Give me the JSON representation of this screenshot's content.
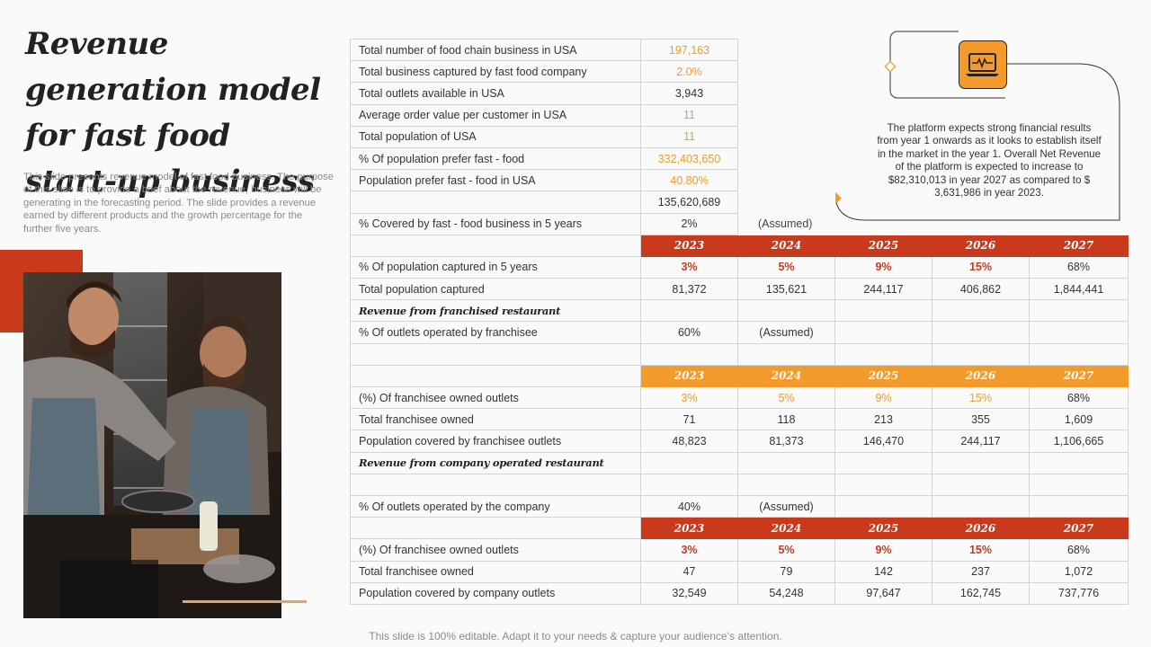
{
  "title": "Revenue generation model for fast food start-up business",
  "description": "This slide presents revenue model of fast food business. The purpose of this slide is to provide a brief about the revenue, business will be generating in the forecasting period. The slide provides a revenue earned by different products and the growth percentage for the further five years.",
  "callout": {
    "text": "The platform expects strong financial results from year 1 onwards as it looks to establish itself in the market in the year 1. Overall Net Revenue of the platform is expected to increase to $82,310,013 in year 2027 as compared to $ 3,631,986 in year 2023.",
    "icon": "laptop-heartbeat-icon"
  },
  "colors": {
    "accent_red": "#c9391c",
    "accent_orange": "#f29b2c"
  },
  "top_rows": [
    {
      "label": "Total number of food chain business in USA",
      "value": "197,163"
    },
    {
      "label": "Total business captured by fast food company",
      "value": "2.0%"
    },
    {
      "label": "Total outlets available in USA",
      "value": "3,943"
    },
    {
      "label": "Average order value per customer in USA",
      "value": "11"
    },
    {
      "label": "Total population of USA",
      "value": "11"
    },
    {
      "label": "% Of population prefer fast - food",
      "value": "332,403,650"
    },
    {
      "label": "Population prefer fast - food in USA",
      "value": "40.80%"
    },
    {
      "label": "",
      "value": "135,620,689"
    },
    {
      "label": "% Covered by fast - food business in 5 years",
      "value": "2%",
      "note": "(Assumed)"
    }
  ],
  "years": [
    "2023",
    "2024",
    "2025",
    "2026",
    "2027"
  ],
  "section1": {
    "rows": [
      {
        "label": "% Of population captured in 5 years",
        "values": [
          "3%",
          "5%",
          "9%",
          "15%",
          "68%"
        ]
      },
      {
        "label": "Total population captured",
        "values": [
          "81,372",
          "135,621",
          "244,117",
          "406,862",
          "1,844,441"
        ]
      }
    ]
  },
  "section2": {
    "heading": "Revenue from franchised restaurant",
    "assumption_label": "% Of outlets operated by franchisee",
    "assumption_value": "60%",
    "assumption_note": "(Assumed)",
    "rows": [
      {
        "label": "(%) Of franchisee owned outlets",
        "values": [
          "3%",
          "5%",
          "9%",
          "15%",
          "68%"
        ]
      },
      {
        "label": "Total franchisee owned",
        "values": [
          "71",
          "118",
          "213",
          "355",
          "1,609"
        ]
      },
      {
        "label": "Population covered by franchisee outlets",
        "values": [
          "48,823",
          "81,373",
          "146,470",
          "244,117",
          "1,106,665"
        ]
      }
    ]
  },
  "section3": {
    "heading": "Revenue from company operated restaurant",
    "assumption_label": "% Of outlets operated by the company",
    "assumption_value": "40%",
    "assumption_note": "(Assumed)",
    "rows": [
      {
        "label": "(%) Of franchisee owned outlets",
        "values": [
          "3%",
          "5%",
          "9%",
          "15%",
          "68%"
        ]
      },
      {
        "label": "Total franchisee owned",
        "values": [
          "47",
          "79",
          "142",
          "237",
          "1,072"
        ]
      },
      {
        "label": "Population covered by company outlets",
        "values": [
          "32,549",
          "54,248",
          "97,647",
          "162,745",
          "737,776"
        ]
      }
    ]
  },
  "footer": "This slide is 100% editable. Adapt it to your needs & capture your audience’s attention."
}
